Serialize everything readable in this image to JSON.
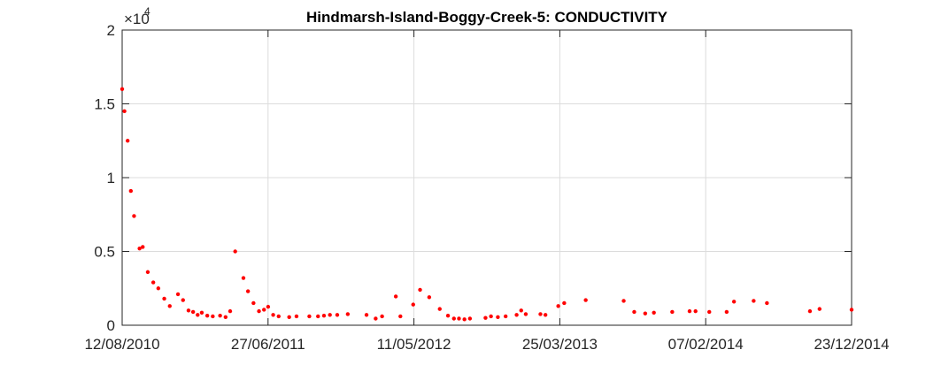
{
  "chart_data": {
    "type": "scatter",
    "title": "Hindmarsh-Island-Boggy-Creek-5: CONDUCTIVITY",
    "xlabel": "",
    "ylabel": "",
    "x_axis_type": "date",
    "xlim": [
      "2010-08-12",
      "2014-12-23"
    ],
    "ylim": [
      0,
      20000
    ],
    "y_scale_label": {
      "base": "×10",
      "exponent": "4"
    },
    "x_ticks": [
      "12/08/2010",
      "27/06/2011",
      "11/05/2012",
      "25/03/2013",
      "07/02/2014",
      "23/12/2014"
    ],
    "y_ticks": [
      "0",
      "0.5",
      "1",
      "1.5",
      "2"
    ],
    "grid": true,
    "marker_color": "#ff0000",
    "series": [
      {
        "points": [
          {
            "x": "2010-08-12",
            "y": 16000
          },
          {
            "x": "2010-08-17",
            "y": 14500
          },
          {
            "x": "2010-08-24",
            "y": 12500
          },
          {
            "x": "2010-08-31",
            "y": 9100
          },
          {
            "x": "2010-09-07",
            "y": 7400
          },
          {
            "x": "2010-09-19",
            "y": 5200
          },
          {
            "x": "2010-09-26",
            "y": 5300
          },
          {
            "x": "2010-10-07",
            "y": 3600
          },
          {
            "x": "2010-10-19",
            "y": 2900
          },
          {
            "x": "2010-10-30",
            "y": 2500
          },
          {
            "x": "2010-11-12",
            "y": 1800
          },
          {
            "x": "2010-11-24",
            "y": 1300
          },
          {
            "x": "2010-12-12",
            "y": 2100
          },
          {
            "x": "2010-12-23",
            "y": 1700
          },
          {
            "x": "2011-01-04",
            "y": 1000
          },
          {
            "x": "2011-01-14",
            "y": 900
          },
          {
            "x": "2011-01-24",
            "y": 700
          },
          {
            "x": "2011-02-02",
            "y": 850
          },
          {
            "x": "2011-02-14",
            "y": 650
          },
          {
            "x": "2011-02-26",
            "y": 600
          },
          {
            "x": "2011-03-14",
            "y": 650
          },
          {
            "x": "2011-03-26",
            "y": 550
          },
          {
            "x": "2011-04-05",
            "y": 950
          },
          {
            "x": "2011-04-16",
            "y": 5000
          },
          {
            "x": "2011-05-04",
            "y": 3200
          },
          {
            "x": "2011-05-14",
            "y": 2300
          },
          {
            "x": "2011-05-26",
            "y": 1500
          },
          {
            "x": "2011-06-07",
            "y": 950
          },
          {
            "x": "2011-06-18",
            "y": 1050
          },
          {
            "x": "2011-06-27",
            "y": 1250
          },
          {
            "x": "2011-07-08",
            "y": 700
          },
          {
            "x": "2011-07-20",
            "y": 600
          },
          {
            "x": "2011-08-12",
            "y": 550
          },
          {
            "x": "2011-08-28",
            "y": 600
          },
          {
            "x": "2011-09-25",
            "y": 600
          },
          {
            "x": "2011-10-14",
            "y": 600
          },
          {
            "x": "2011-10-27",
            "y": 650
          },
          {
            "x": "2011-11-09",
            "y": 700
          },
          {
            "x": "2011-11-25",
            "y": 700
          },
          {
            "x": "2011-12-18",
            "y": 750
          },
          {
            "x": "2012-01-28",
            "y": 700
          },
          {
            "x": "2012-02-17",
            "y": 450
          },
          {
            "x": "2012-03-02",
            "y": 600
          },
          {
            "x": "2012-04-01",
            "y": 1950
          },
          {
            "x": "2012-04-11",
            "y": 600
          },
          {
            "x": "2012-05-09",
            "y": 1400
          },
          {
            "x": "2012-05-24",
            "y": 2400
          },
          {
            "x": "2012-06-13",
            "y": 1900
          },
          {
            "x": "2012-07-06",
            "y": 1100
          },
          {
            "x": "2012-07-24",
            "y": 650
          },
          {
            "x": "2012-08-06",
            "y": 450
          },
          {
            "x": "2012-08-17",
            "y": 450
          },
          {
            "x": "2012-08-29",
            "y": 400
          },
          {
            "x": "2012-09-10",
            "y": 450
          },
          {
            "x": "2012-10-14",
            "y": 500
          },
          {
            "x": "2012-10-26",
            "y": 600
          },
          {
            "x": "2012-11-10",
            "y": 550
          },
          {
            "x": "2012-11-27",
            "y": 600
          },
          {
            "x": "2012-12-21",
            "y": 700
          },
          {
            "x": "2012-12-31",
            "y": 1000
          },
          {
            "x": "2013-01-10",
            "y": 750
          },
          {
            "x": "2013-02-11",
            "y": 750
          },
          {
            "x": "2013-02-22",
            "y": 700
          },
          {
            "x": "2013-03-22",
            "y": 1300
          },
          {
            "x": "2013-04-04",
            "y": 1500
          },
          {
            "x": "2013-05-21",
            "y": 1700
          },
          {
            "x": "2013-08-12",
            "y": 1650
          },
          {
            "x": "2013-09-04",
            "y": 900
          },
          {
            "x": "2013-09-28",
            "y": 800
          },
          {
            "x": "2013-10-17",
            "y": 850
          },
          {
            "x": "2013-11-26",
            "y": 900
          },
          {
            "x": "2014-01-03",
            "y": 950
          },
          {
            "x": "2014-01-16",
            "y": 950
          },
          {
            "x": "2014-02-15",
            "y": 900
          },
          {
            "x": "2014-03-25",
            "y": 900
          },
          {
            "x": "2014-04-10",
            "y": 1600
          },
          {
            "x": "2014-05-23",
            "y": 1650
          },
          {
            "x": "2014-06-21",
            "y": 1500
          },
          {
            "x": "2014-09-23",
            "y": 950
          },
          {
            "x": "2014-10-14",
            "y": 1100
          },
          {
            "x": "2014-12-23",
            "y": 1050
          }
        ]
      }
    ]
  }
}
